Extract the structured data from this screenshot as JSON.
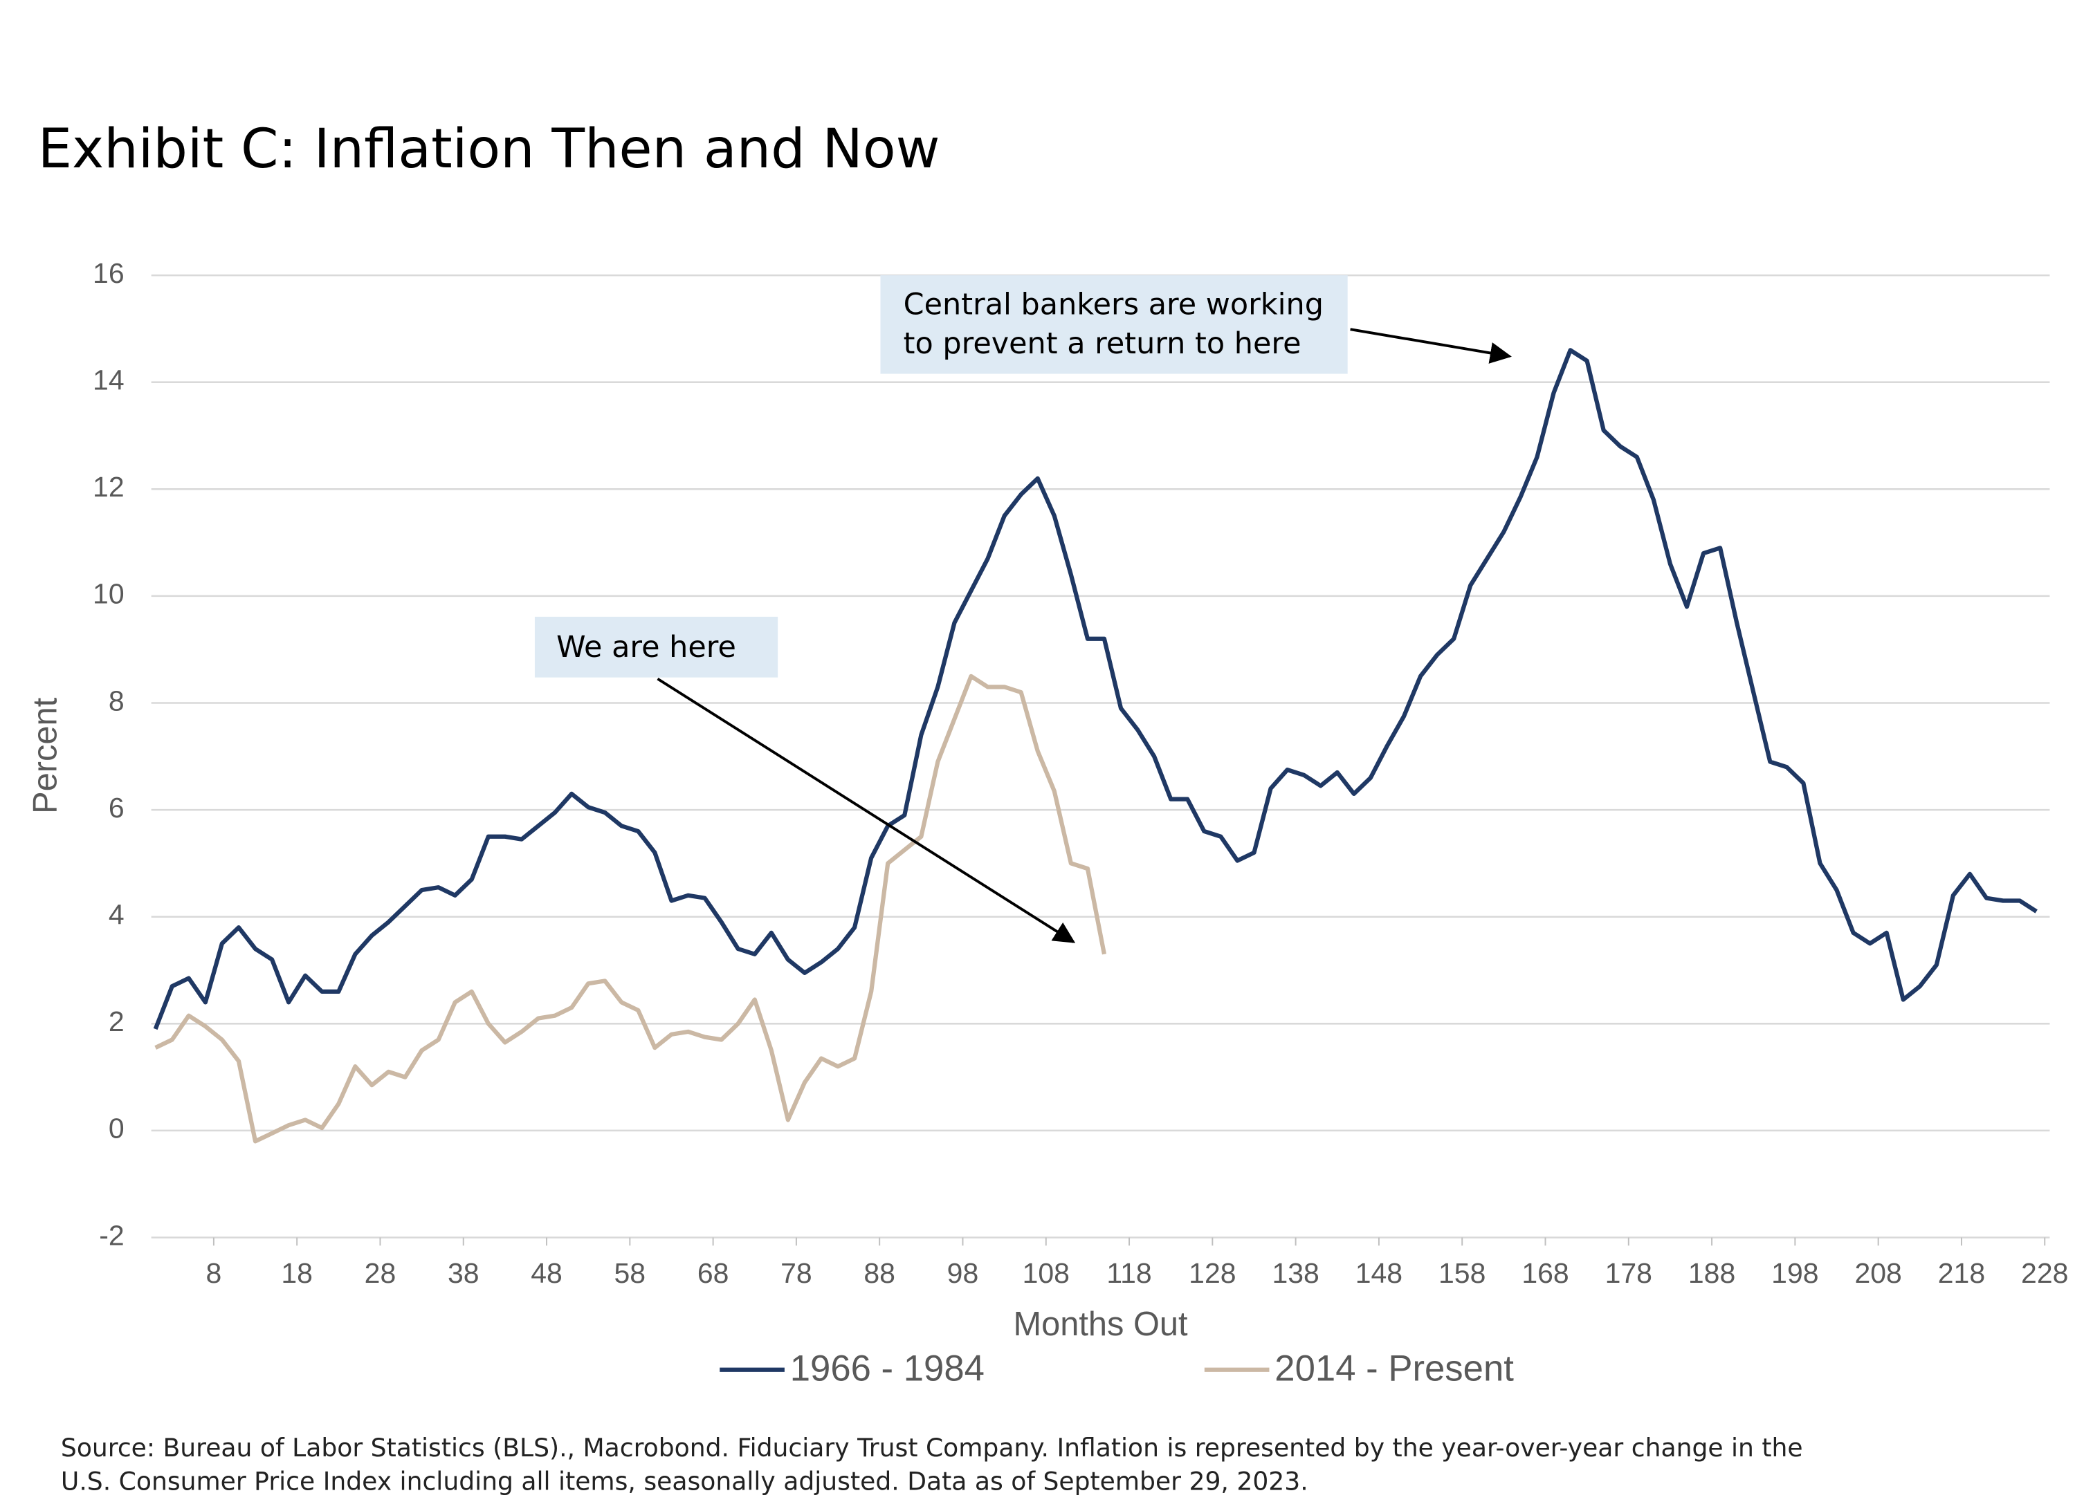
{
  "chart_data": {
    "type": "line",
    "title": "Exhibit C: Inflation Then and Now",
    "x_label": "Months Out",
    "y_label": "Percent",
    "x": [
      1,
      3,
      5,
      7,
      9,
      11,
      13,
      15,
      17,
      19,
      21,
      23,
      25,
      27,
      29,
      31,
      33,
      35,
      37,
      39,
      41,
      43,
      45,
      47,
      49,
      51,
      53,
      55,
      57,
      59,
      61,
      63,
      65,
      67,
      69,
      71,
      73,
      75,
      77,
      79,
      81,
      83,
      85,
      87,
      89,
      91,
      93,
      95,
      97,
      99,
      101,
      103,
      105,
      107,
      109,
      111,
      113,
      115,
      117,
      119,
      121,
      123,
      125,
      127,
      129,
      131,
      133,
      135,
      137,
      139,
      141,
      143,
      145,
      147,
      149,
      151,
      153,
      155,
      157,
      159,
      161,
      163,
      165,
      167,
      169,
      171,
      173,
      175,
      177,
      179,
      181,
      183,
      185,
      187,
      189,
      191,
      193,
      195,
      197,
      199,
      201,
      203,
      205,
      207,
      209,
      211,
      213,
      215,
      217,
      219,
      221,
      223,
      225,
      227
    ],
    "series": [
      {
        "name": "1966 - 1984",
        "color": "#1f3864",
        "values": [
          1.9,
          2.7,
          2.85,
          2.4,
          3.5,
          3.8,
          3.4,
          3.2,
          2.4,
          2.9,
          2.6,
          2.6,
          3.3,
          3.65,
          3.9,
          4.2,
          4.5,
          4.55,
          4.4,
          4.7,
          5.5,
          5.5,
          5.45,
          5.7,
          5.95,
          6.3,
          6.05,
          5.95,
          5.7,
          5.6,
          5.2,
          4.3,
          4.4,
          4.35,
          3.9,
          3.4,
          3.3,
          3.7,
          3.2,
          2.95,
          3.15,
          3.4,
          3.8,
          5.1,
          5.7,
          5.9,
          7.4,
          8.3,
          9.5,
          10.1,
          10.7,
          11.5,
          11.9,
          12.2,
          11.5,
          10.4,
          9.2,
          9.2,
          7.9,
          7.5,
          7.0,
          6.2,
          6.2,
          5.6,
          5.5,
          5.05,
          5.2,
          6.4,
          6.75,
          6.65,
          6.45,
          6.7,
          6.3,
          6.6,
          7.2,
          7.75,
          8.5,
          8.9,
          9.2,
          10.2,
          10.7,
          11.2,
          11.85,
          12.6,
          13.8,
          14.6,
          14.4,
          13.1,
          12.8,
          12.6,
          11.8,
          10.6,
          9.8,
          10.8,
          10.9,
          9.5,
          8.2,
          6.9,
          6.8,
          6.5,
          5.0,
          4.5,
          3.7,
          3.5,
          3.7,
          2.45,
          2.7,
          3.1,
          4.4,
          4.8,
          4.35,
          4.3,
          4.3,
          4.1
        ]
      },
      {
        "name": "2014 - Present",
        "color": "#cbb8a4",
        "values": [
          1.55,
          1.7,
          2.15,
          1.95,
          1.7,
          1.3,
          -0.2,
          -0.05,
          0.1,
          0.2,
          0.05,
          0.5,
          1.2,
          0.85,
          1.1,
          1.0,
          1.5,
          1.7,
          2.4,
          2.6,
          2.0,
          1.65,
          1.85,
          2.1,
          2.15,
          2.3,
          2.75,
          2.8,
          2.4,
          2.25,
          1.55,
          1.8,
          1.85,
          1.75,
          1.7,
          2.0,
          2.45,
          1.5,
          0.2,
          0.9,
          1.35,
          1.2,
          1.35,
          2.6,
          5.0,
          5.25,
          5.5,
          6.9,
          7.7,
          8.5,
          8.3,
          8.3,
          8.2,
          7.1,
          6.35,
          5.0,
          4.9,
          3.3,
          null,
          null,
          null,
          null,
          null,
          null,
          null,
          null,
          null,
          null,
          null,
          null,
          null,
          null,
          null,
          null,
          null,
          null,
          null,
          null,
          null,
          null,
          null,
          null,
          null,
          null,
          null,
          null,
          null,
          null,
          null,
          null,
          null,
          null,
          null,
          null,
          null,
          null,
          null,
          null,
          null,
          null,
          null,
          null,
          null,
          null,
          null,
          null,
          null,
          null,
          null,
          null,
          null,
          null,
          null,
          null
        ]
      }
    ],
    "xlim": [
      0.5,
      228.6
    ],
    "xticks": [
      8,
      18,
      28,
      38,
      48,
      58,
      68,
      78,
      88,
      98,
      108,
      118,
      128,
      138,
      148,
      158,
      168,
      178,
      188,
      198,
      208,
      218,
      228
    ],
    "ylim": [
      -2,
      16
    ],
    "yticks": [
      -2,
      0,
      2,
      4,
      6,
      8,
      10,
      12,
      14,
      16
    ],
    "grid": true,
    "legend": "bottom",
    "annotations": [
      {
        "lines": [
          "Central bankers are working",
          "to prevent a return to here"
        ]
      },
      {
        "lines": [
          "We are here"
        ]
      }
    ],
    "source": [
      "Source: Bureau of Labor Statistics (BLS)., Macrobond. Fiduciary Trust Company. Inflation is represented by the year-over-year change in the",
      "U.S. Consumer Price Index including all items, seasonally adjusted. Data as of September 29, 2023."
    ]
  }
}
